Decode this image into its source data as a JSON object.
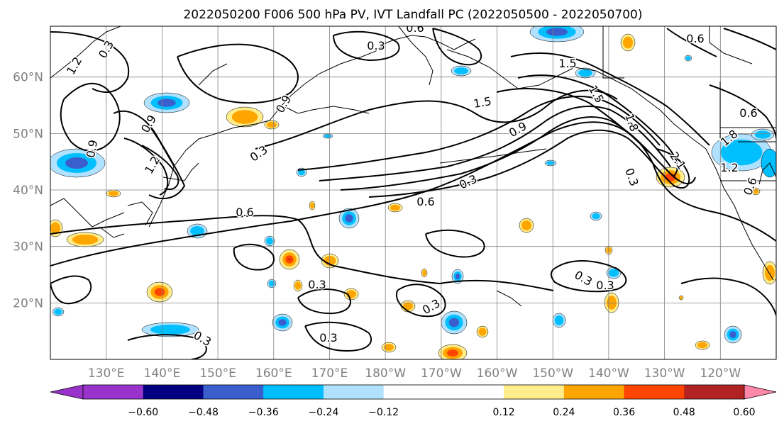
{
  "title": "2022050200 F006 500 hPa PV, IVT Landfall PC (2022050500 - 2022050700)",
  "map": {
    "lon_labels": [
      "130°E",
      "140°E",
      "150°E",
      "160°E",
      "170°E",
      "180°W",
      "170°W",
      "160°W",
      "150°W",
      "140°W",
      "130°W",
      "120°W"
    ],
    "lat_labels": [
      "60°N",
      "50°N",
      "40°N",
      "30°N",
      "20°N"
    ],
    "lon_range_east": [
      120,
      250
    ],
    "lat_range": [
      10,
      69
    ],
    "grid": true,
    "gridline_color": "#808080",
    "coastline_color": "#000000"
  },
  "contours": {
    "color": "#000000",
    "labels": [
      "0.3",
      "0.3",
      "0.3",
      "0.3",
      "0.3",
      "0.3",
      "0.3",
      "0.3",
      "0.3",
      "0.6",
      "0.6",
      "0.6",
      "0.6",
      "0.6",
      "0.9",
      "0.9",
      "0.9",
      "1.2",
      "1.2",
      "1.5",
      "1.5",
      "1.5",
      "1.8",
      "1.8",
      "2.1",
      "0.3",
      "0.9",
      "1.2",
      "0.6",
      "0.3"
    ]
  },
  "colorbar": {
    "colors": [
      "#9933cc",
      "#000080",
      "#3a5fcd",
      "#00bfff",
      "#b0e2ff",
      "#ffffff",
      "#ffffff",
      "#ffec8b",
      "#ffa500",
      "#ff4500",
      "#b22222",
      "#ff88aa"
    ],
    "tick_labels": [
      "−0.60",
      "−0.48",
      "−0.36",
      "−0.24",
      "−0.12",
      "0.12",
      "0.24",
      "0.36",
      "0.48",
      "0.60"
    ],
    "extend": "both"
  }
}
